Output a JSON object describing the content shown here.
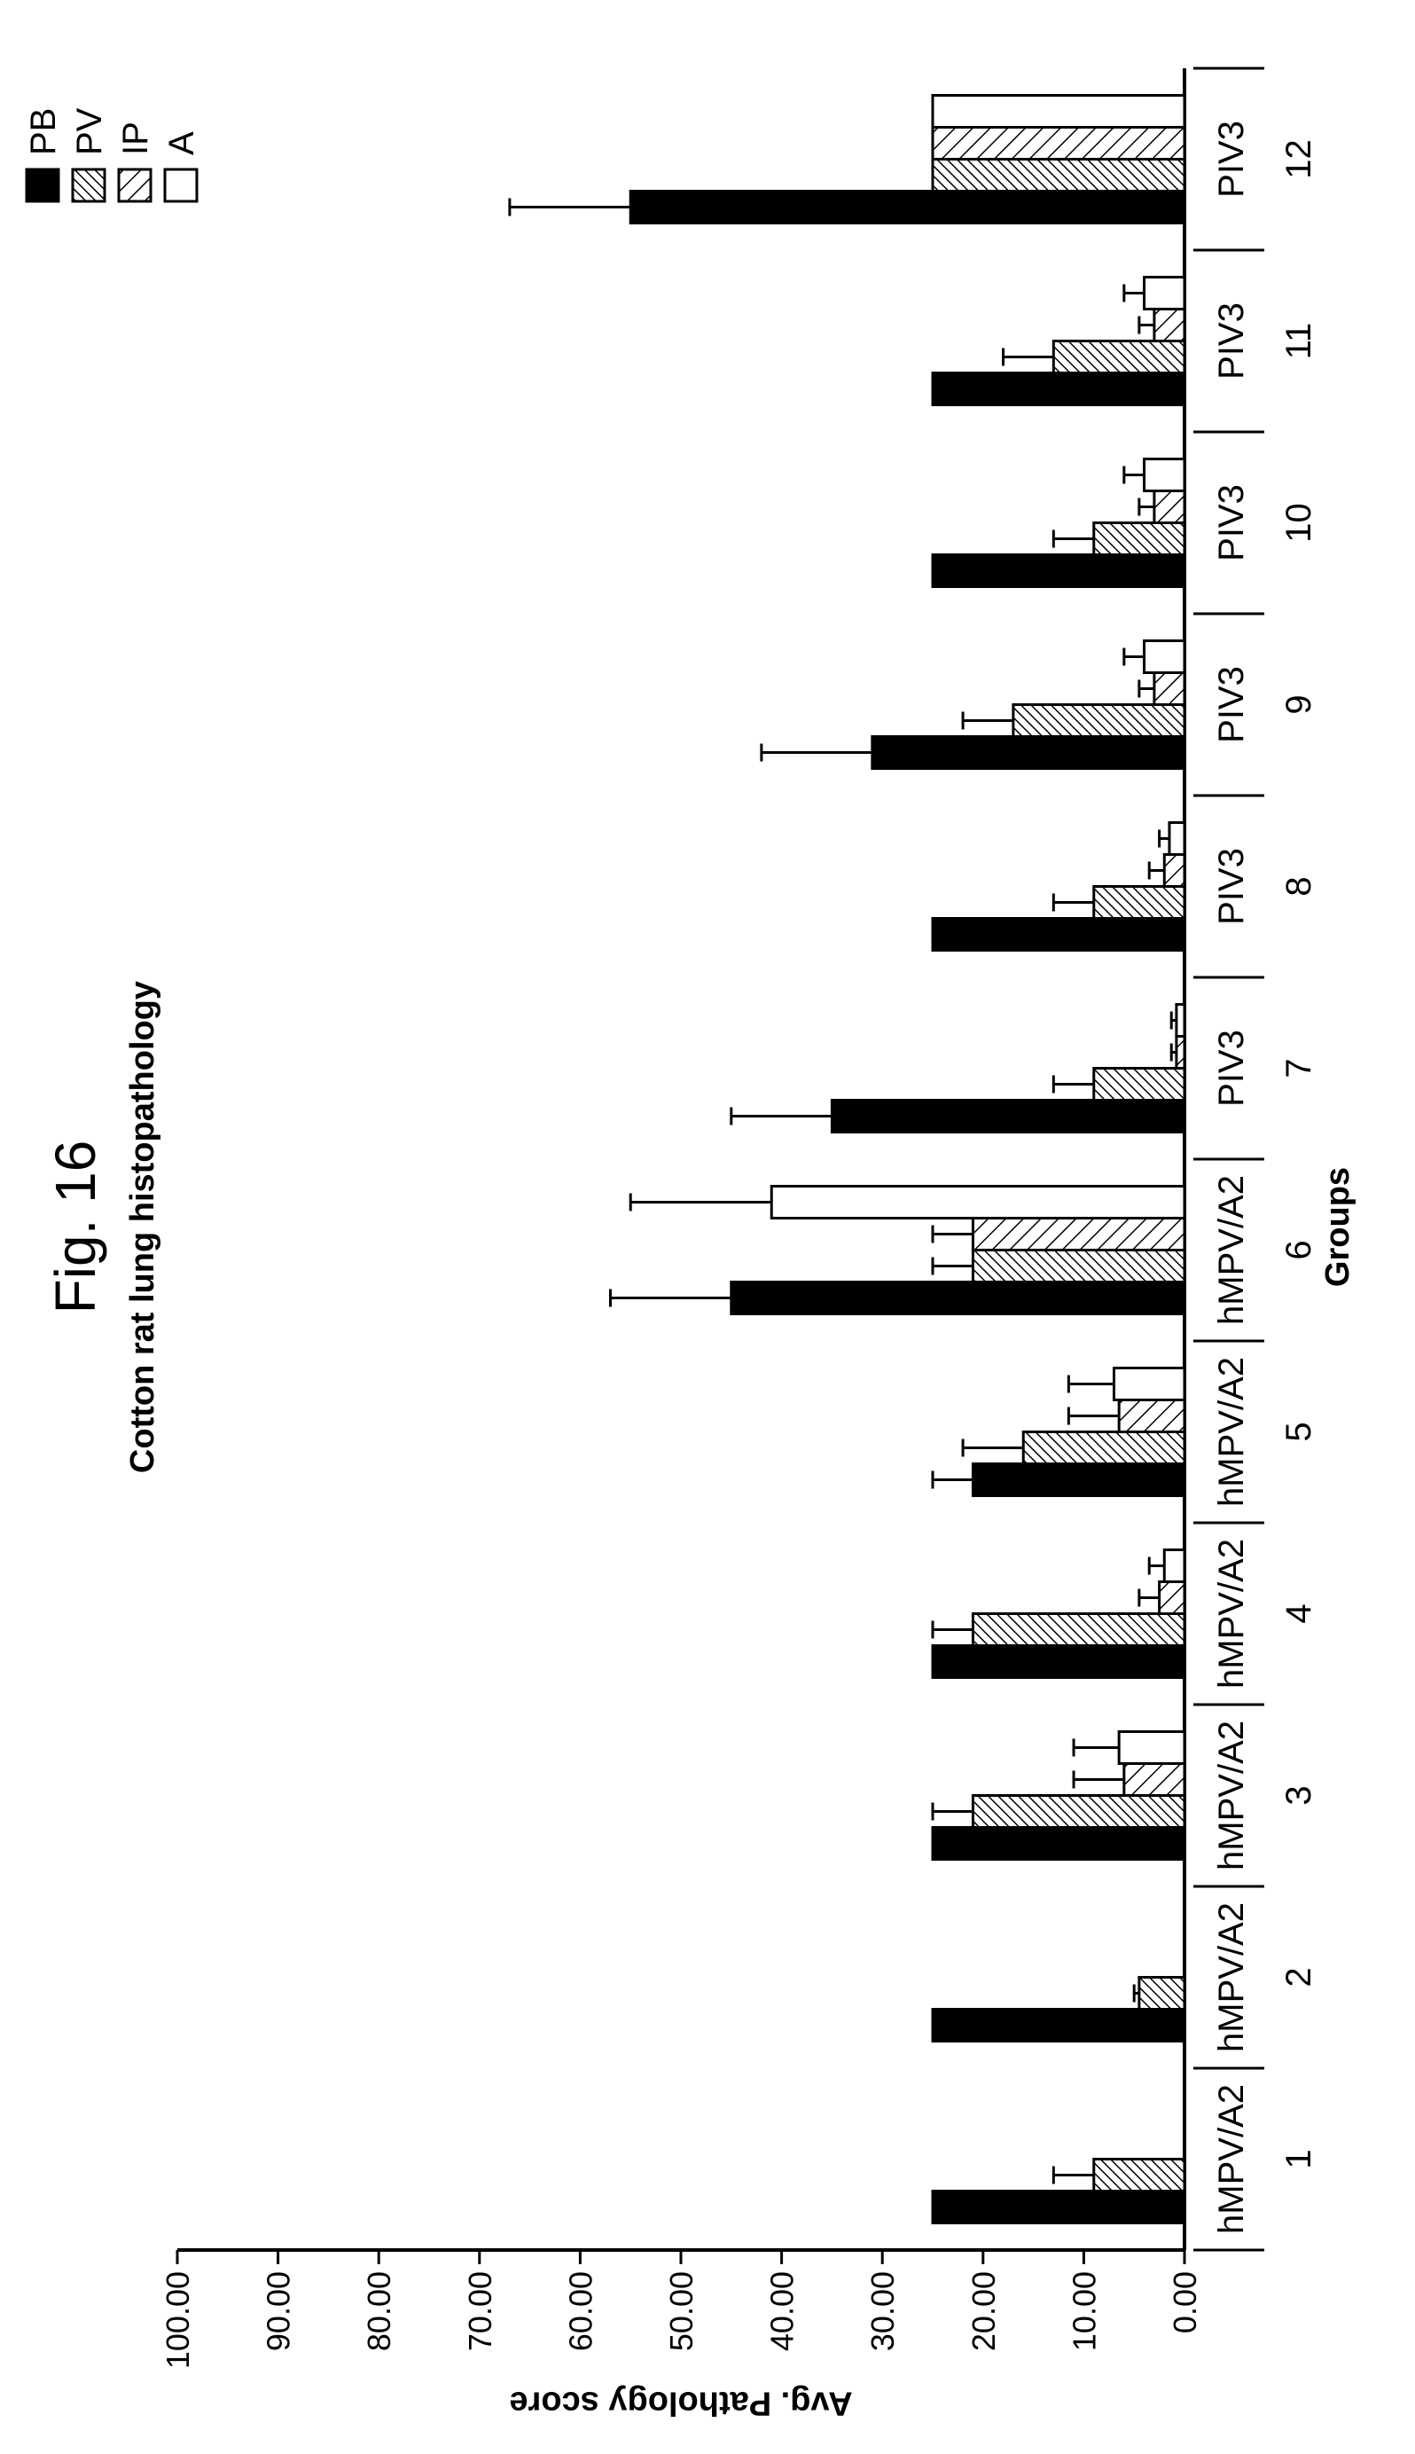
{
  "figure": {
    "label": "Fig. 16"
  },
  "chart_data": {
    "type": "bar",
    "title": "Cotton rat lung histopathology",
    "xlabel": "Groups",
    "ylabel": "Avg. Pathology score",
    "ylim": [
      0,
      100
    ],
    "yticks": [
      "0.00",
      "10.00",
      "20.00",
      "30.00",
      "40.00",
      "50.00",
      "60.00",
      "70.00",
      "80.00",
      "90.00",
      "100.00"
    ],
    "categories": [
      "1",
      "2",
      "3",
      "4",
      "5",
      "6",
      "7",
      "8",
      "9",
      "10",
      "11",
      "12"
    ],
    "virus_labels": [
      "hMPV/A2",
      "hMPV/A2",
      "hMPV/A2",
      "hMPV/A2",
      "hMPV/A2",
      "hMPV/A2",
      "PIV3",
      "PIV3",
      "PIV3",
      "PIV3",
      "PIV3",
      "PIV3"
    ],
    "legend_position": "top-right",
    "grid": false,
    "series": [
      {
        "name": "PB",
        "pattern": "solid",
        "color": "#000000",
        "values": [
          25,
          25,
          25,
          25,
          21,
          45,
          35,
          25,
          31,
          25,
          25,
          55
        ],
        "errors": [
          0,
          0,
          0,
          0,
          4,
          12,
          10,
          0,
          11,
          0,
          0,
          12
        ]
      },
      {
        "name": "PV",
        "pattern": "dense-hatch",
        "color": "#000000",
        "values": [
          9,
          4.5,
          21,
          21,
          16,
          21,
          9,
          9,
          17,
          9,
          13,
          25
        ],
        "errors": [
          4,
          0.5,
          4,
          4,
          6,
          4,
          4,
          4,
          5,
          4,
          5,
          0
        ]
      },
      {
        "name": "IP",
        "pattern": "sparse-hatch",
        "color": "#000000",
        "values": [
          0,
          0,
          6,
          2.5,
          6.5,
          21,
          0.8,
          2,
          3,
          3,
          3,
          25
        ],
        "errors": [
          0,
          0,
          5,
          2,
          5,
          4,
          0.5,
          1.5,
          1.5,
          1.5,
          1.5,
          0
        ]
      },
      {
        "name": "A",
        "pattern": "open",
        "color": "#ffffff",
        "values": [
          0,
          0,
          6.5,
          2,
          7,
          41,
          0.8,
          1.5,
          4,
          4,
          4,
          25
        ],
        "errors": [
          0,
          0,
          4.5,
          1.5,
          4.5,
          14,
          0.5,
          1,
          2,
          2,
          2,
          0
        ]
      }
    ]
  }
}
